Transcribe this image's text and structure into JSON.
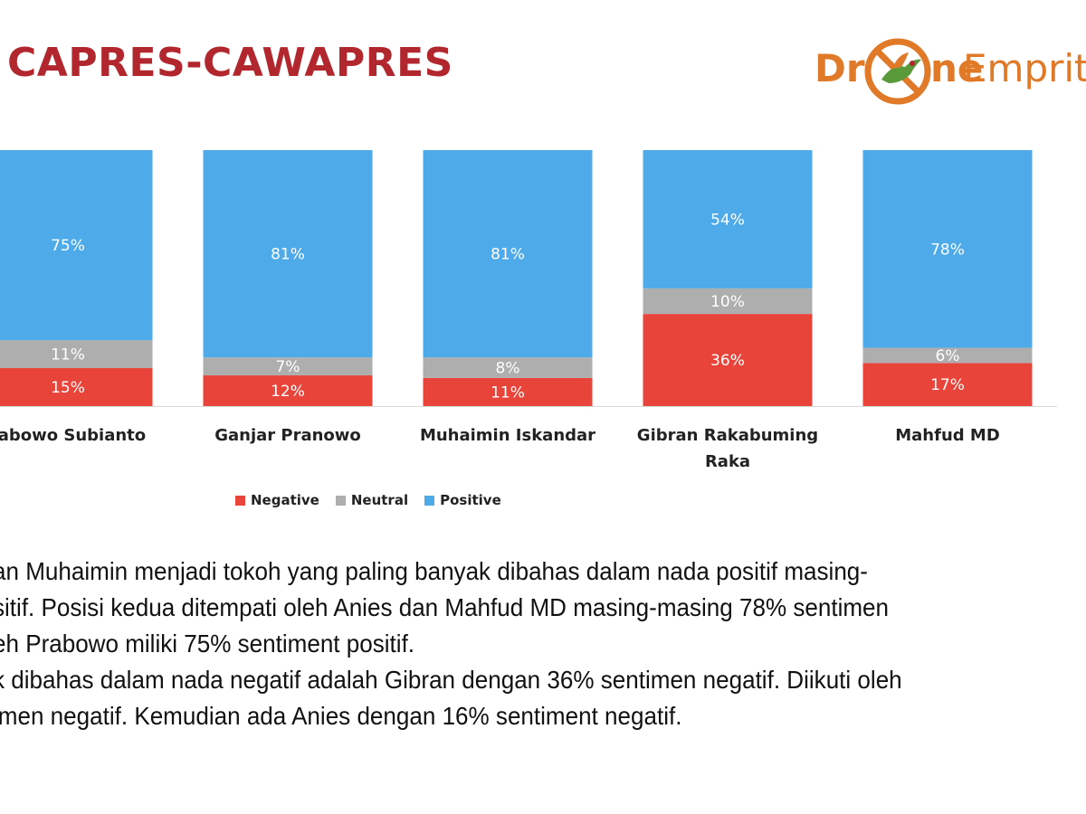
{
  "header": {
    "title": "CAPRES-CAWAPRES",
    "title_color": "#b1272d"
  },
  "logo": {
    "text_part1": "Dr",
    "text_part2": "ne",
    "text_part3": "Emprit",
    "orange": "#e07a29",
    "green": "#5a9a3a"
  },
  "colors": {
    "negative": "#e8443a",
    "neutral": "#aeaeae",
    "positive": "#4eaae8"
  },
  "chart_data": {
    "type": "bar",
    "stacked": true,
    "percent": true,
    "categories": [
      "rabowo Subianto",
      "Ganjar Pranowo",
      "Muhaimin Iskandar",
      "Gibran Rakabuming Raka",
      "Mahfud MD"
    ],
    "series": [
      {
        "name": "Negative",
        "values": [
          15,
          12,
          11,
          36,
          17
        ],
        "labels": [
          "15%",
          "12%",
          "11%",
          "36%",
          "17%"
        ]
      },
      {
        "name": "Neutral",
        "values": [
          11,
          7,
          8,
          10,
          6
        ],
        "labels": [
          "11%",
          "7%",
          "8%",
          "10%",
          "6%"
        ]
      },
      {
        "name": "Positive",
        "values": [
          75,
          81,
          81,
          54,
          78
        ],
        "labels": [
          "75%",
          "81%",
          "81%",
          "54%",
          "78%"
        ]
      }
    ],
    "ylim": [
      0,
      100
    ],
    "legend_position": "bottom",
    "grid": false
  },
  "body_text": {
    "lines": [
      "an Muhaimin menjadi tokoh yang paling banyak dibahas dalam nada positif masing-",
      "sitif. Posisi kedua ditempati oleh Anies dan Mahfud MD masing-masing 78% sentimen",
      "eh Prabowo miliki 75% sentiment positif.",
      "k dibahas dalam nada negatif adalah Gibran dengan 36% sentimen negatif. Diikuti oleh",
      "imen negatif. Kemudian ada Anies dengan 16% sentiment negatif."
    ]
  }
}
